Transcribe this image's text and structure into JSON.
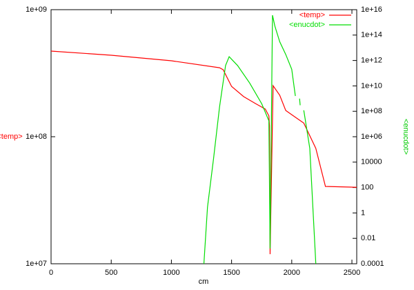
{
  "chart_data": {
    "type": "line",
    "xlabel": "cm",
    "ylabel": "<temp>",
    "y2label": "<enucdot>",
    "xlim": [
      0,
      2540
    ],
    "xticks": [
      0,
      500,
      1000,
      1500,
      2000,
      2500
    ],
    "ylim": [
      10000000,
      1000000000
    ],
    "yscale": "log",
    "yticks": [
      {
        "value": 1000000000,
        "label": "1e+09"
      },
      {
        "value": 100000000,
        "label": "1e+08"
      },
      {
        "value": 10000000,
        "label": "1e+07"
      }
    ],
    "y2lim": [
      0.0001,
      1e+16
    ],
    "y2scale": "log",
    "y2ticks": [
      {
        "value": 1e+16,
        "label": "1e+16"
      },
      {
        "value": 100000000000000.0,
        "label": "1e+14"
      },
      {
        "value": 1000000000000.0,
        "label": "1e+12"
      },
      {
        "value": 10000000000.0,
        "label": "1e+10"
      },
      {
        "value": 100000000,
        "label": "1e+08"
      },
      {
        "value": 1000000,
        "label": "1e+06"
      },
      10000,
      100,
      1,
      0.01,
      0.0001
    ],
    "legend": "upper right",
    "series": [
      {
        "name": "<temp>",
        "color": "#ff0000",
        "axis": "y",
        "x": [
          0,
          500,
          1000,
          1400,
          1430,
          1500,
          1600,
          1700,
          1780,
          1810,
          1815,
          1820,
          1845,
          1900,
          1950,
          2000,
          2100,
          2200,
          2280,
          2540
        ],
        "values": [
          472000000,
          438000000,
          396000000,
          349000000,
          337000000,
          249000000,
          207000000,
          182000000,
          165000000,
          146000000,
          122000000,
          11900000,
          252000000,
          212000000,
          161000000,
          149000000,
          128000000,
          81000000,
          40600000,
          40000000
        ]
      },
      {
        "name": "<enucdot>",
        "color": "#00dd00",
        "axis": "y2",
        "x": [
          1270,
          1300,
          1350,
          1400,
          1450,
          1480,
          1550,
          1650,
          1750,
          1810,
          1820,
          1840,
          1860,
          1900,
          1950,
          2000,
          2030,
          2045,
          2065,
          2070,
          2080,
          2100,
          2150,
          2200
        ],
        "values": [
          0.0001,
          2.9,
          18000,
          220000000,
          400000000000,
          2000000000000,
          400000000000,
          17000000000,
          400000000,
          18000000,
          0.0016,
          3700000000000000,
          500000000000000,
          30000000000000,
          3000000000000,
          200000000000,
          1600000000,
          null,
          1000000000,
          300000000,
          null,
          120000000,
          120000,
          0.0001
        ]
      }
    ]
  }
}
